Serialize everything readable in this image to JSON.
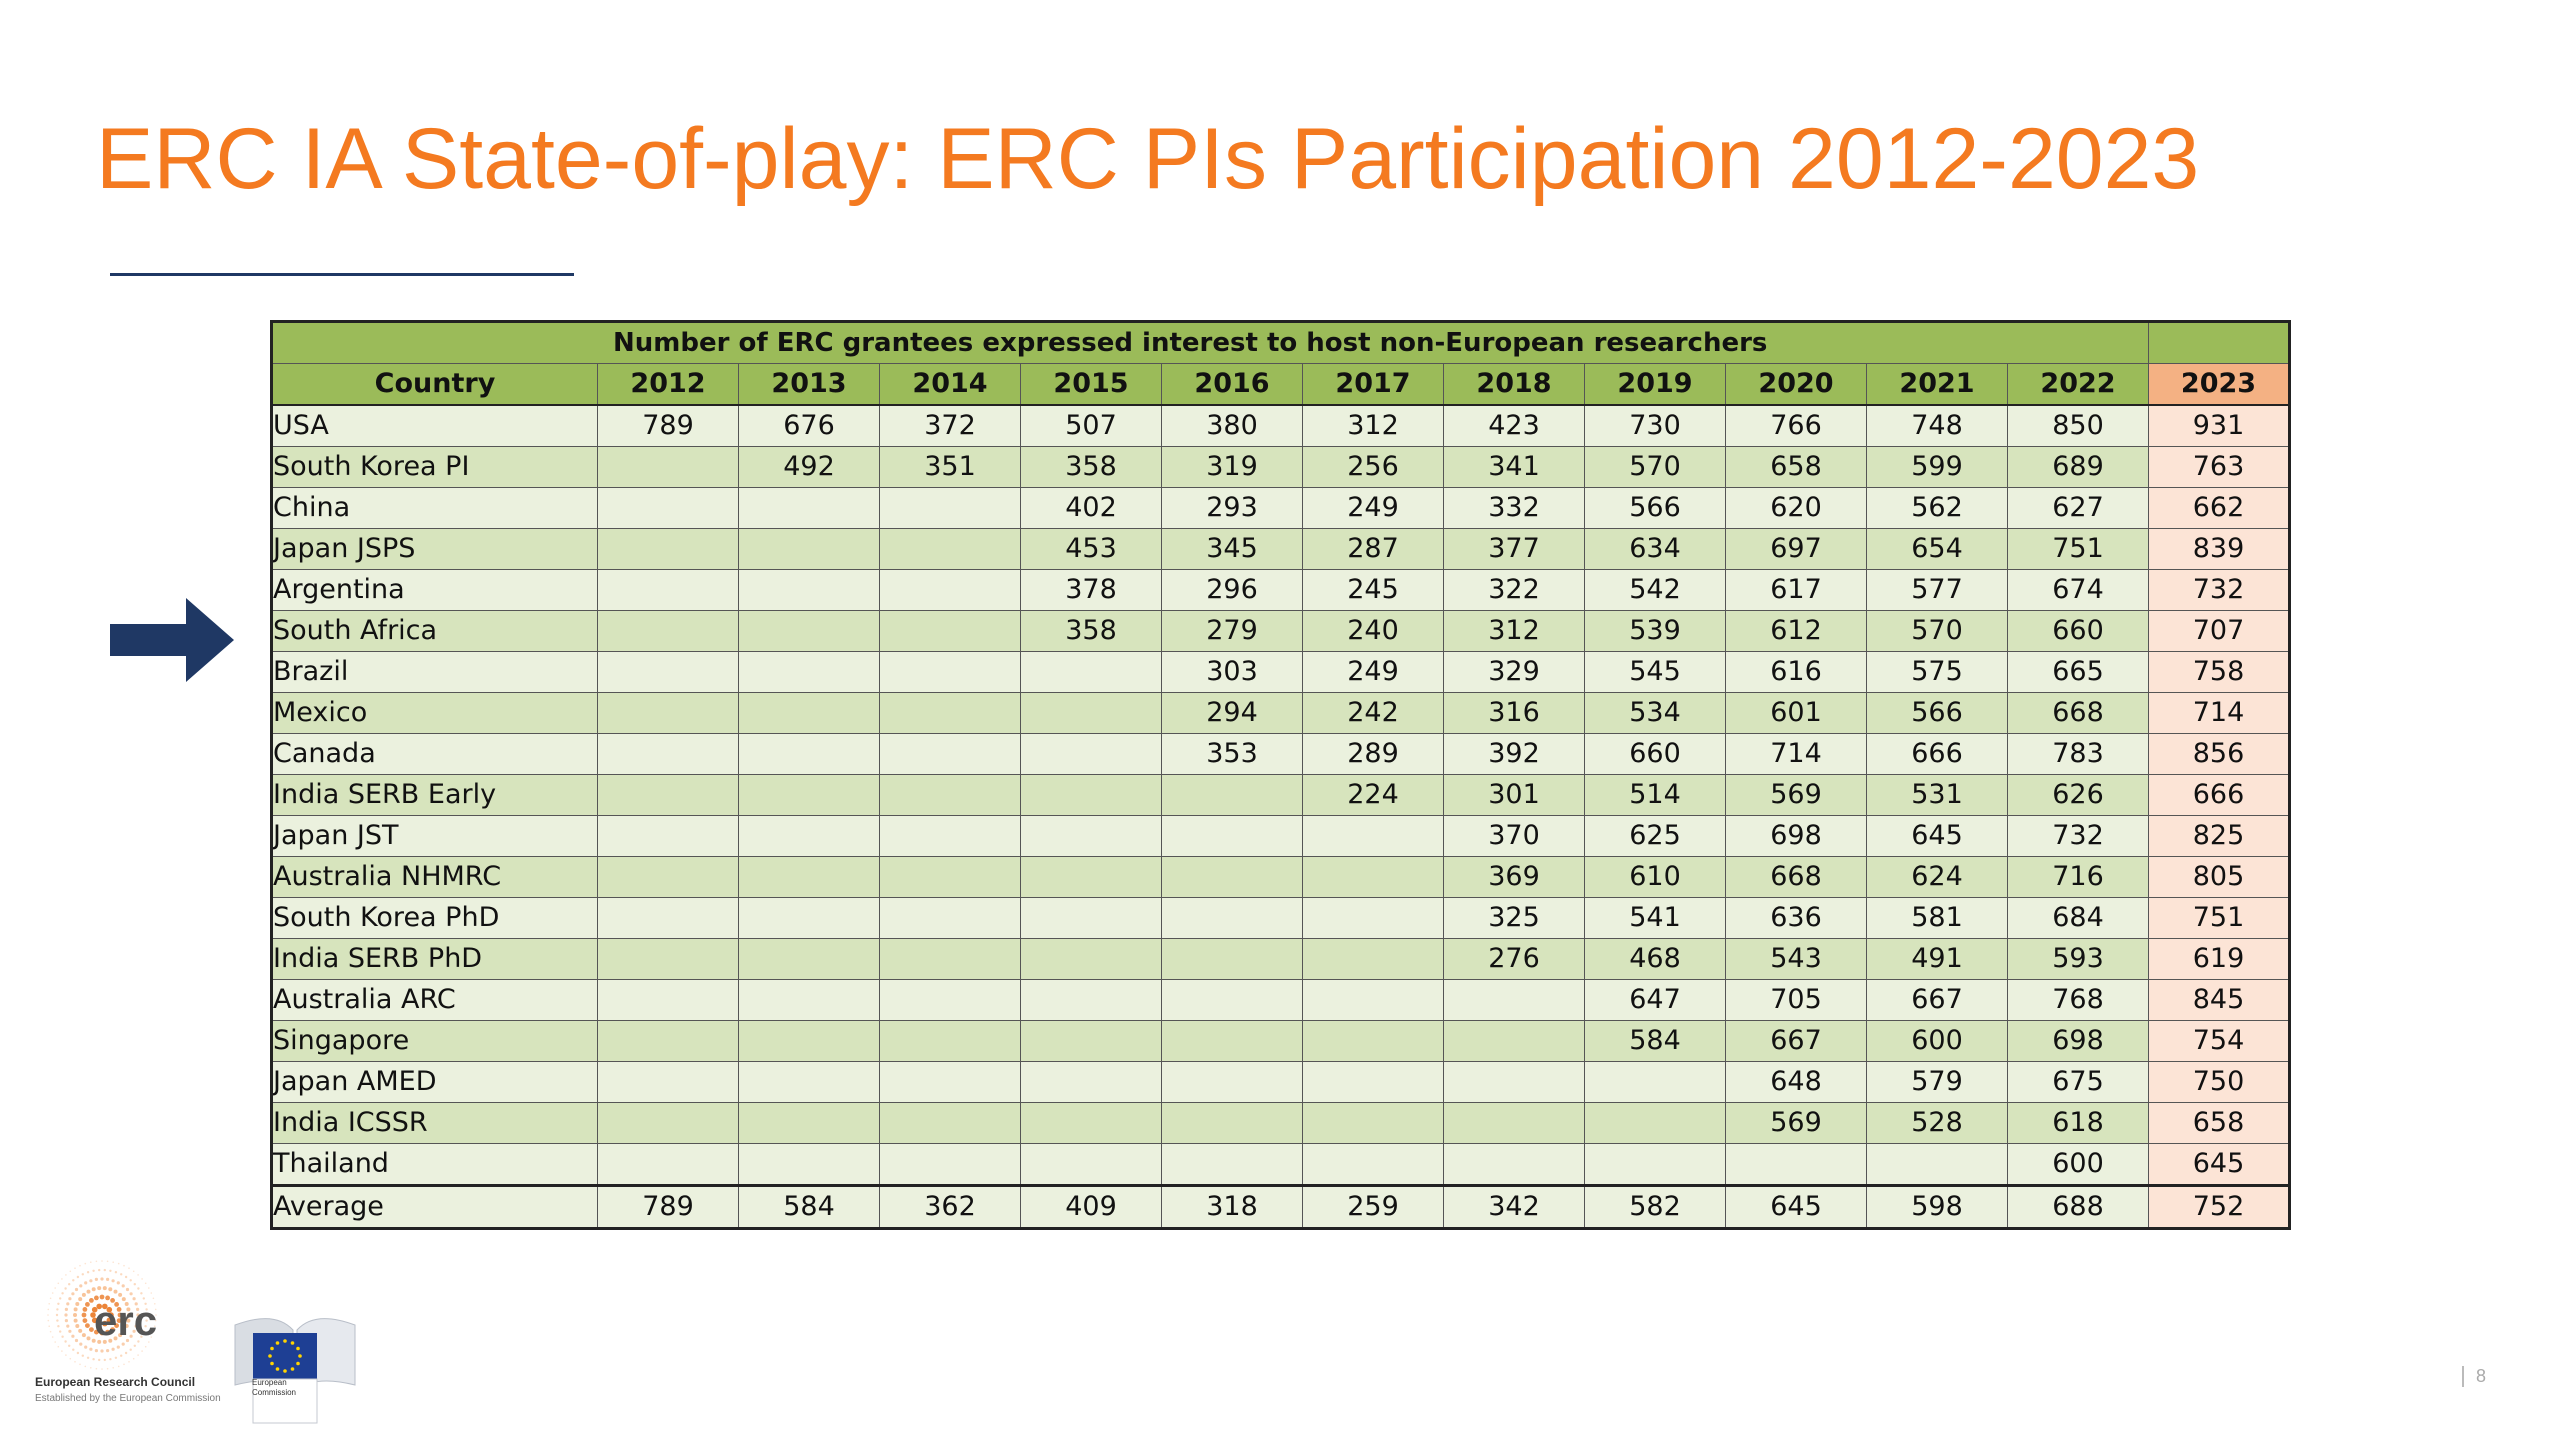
{
  "slide": {
    "title": "ERC IA State-of-play: ERC PIs Participation 2012-2023",
    "page_number": "8"
  },
  "table": {
    "header_title": "Number of ERC grantees expressed interest to host non-European researchers",
    "country_header": "Country",
    "years": [
      "2012",
      "2013",
      "2014",
      "2015",
      "2016",
      "2017",
      "2018",
      "2019",
      "2020",
      "2021",
      "2022",
      "2023"
    ],
    "rows": [
      {
        "country": "USA",
        "values": [
          "789",
          "676",
          "372",
          "507",
          "380",
          "312",
          "423",
          "730",
          "766",
          "748",
          "850",
          "931"
        ]
      },
      {
        "country": "South Korea PI",
        "values": [
          "",
          "492",
          "351",
          "358",
          "319",
          "256",
          "341",
          "570",
          "658",
          "599",
          "689",
          "763"
        ]
      },
      {
        "country": "China",
        "values": [
          "",
          "",
          "",
          "402",
          "293",
          "249",
          "332",
          "566",
          "620",
          "562",
          "627",
          "662"
        ]
      },
      {
        "country": "Japan JSPS",
        "values": [
          "",
          "",
          "",
          "453",
          "345",
          "287",
          "377",
          "634",
          "697",
          "654",
          "751",
          "839"
        ]
      },
      {
        "country": "Argentina",
        "values": [
          "",
          "",
          "",
          "378",
          "296",
          "245",
          "322",
          "542",
          "617",
          "577",
          "674",
          "732"
        ]
      },
      {
        "country": "South Africa",
        "values": [
          "",
          "",
          "",
          "358",
          "279",
          "240",
          "312",
          "539",
          "612",
          "570",
          "660",
          "707"
        ]
      },
      {
        "country": "Brazil",
        "values": [
          "",
          "",
          "",
          "",
          "303",
          "249",
          "329",
          "545",
          "616",
          "575",
          "665",
          "758"
        ]
      },
      {
        "country": "Mexico",
        "values": [
          "",
          "",
          "",
          "",
          "294",
          "242",
          "316",
          "534",
          "601",
          "566",
          "668",
          "714"
        ]
      },
      {
        "country": "Canada",
        "values": [
          "",
          "",
          "",
          "",
          "353",
          "289",
          "392",
          "660",
          "714",
          "666",
          "783",
          "856"
        ]
      },
      {
        "country": "India SERB Early",
        "values": [
          "",
          "",
          "",
          "",
          "",
          "224",
          "301",
          "514",
          "569",
          "531",
          "626",
          "666"
        ]
      },
      {
        "country": "Japan JST",
        "values": [
          "",
          "",
          "",
          "",
          "",
          "",
          "370",
          "625",
          "698",
          "645",
          "732",
          "825"
        ]
      },
      {
        "country": "Australia NHMRC",
        "values": [
          "",
          "",
          "",
          "",
          "",
          "",
          "369",
          "610",
          "668",
          "624",
          "716",
          "805"
        ]
      },
      {
        "country": "South Korea PhD",
        "values": [
          "",
          "",
          "",
          "",
          "",
          "",
          "325",
          "541",
          "636",
          "581",
          "684",
          "751"
        ]
      },
      {
        "country": "India SERB PhD",
        "values": [
          "",
          "",
          "",
          "",
          "",
          "",
          "276",
          "468",
          "543",
          "491",
          "593",
          "619"
        ]
      },
      {
        "country": "Australia ARC",
        "values": [
          "",
          "",
          "",
          "",
          "",
          "",
          "",
          "647",
          "705",
          "667",
          "768",
          "845"
        ]
      },
      {
        "country": "Singapore",
        "values": [
          "",
          "",
          "",
          "",
          "",
          "",
          "",
          "584",
          "667",
          "600",
          "698",
          "754"
        ]
      },
      {
        "country": "Japan AMED",
        "values": [
          "",
          "",
          "",
          "",
          "",
          "",
          "",
          "",
          "648",
          "579",
          "675",
          "750"
        ]
      },
      {
        "country": "India ICSSR",
        "values": [
          "",
          "",
          "",
          "",
          "",
          "",
          "",
          "",
          "569",
          "528",
          "618",
          "658"
        ]
      },
      {
        "country": "Thailand",
        "values": [
          "",
          "",
          "",
          "",
          "",
          "",
          "",
          "",
          "",
          "",
          "600",
          "645"
        ]
      }
    ],
    "average": {
      "label": "Average",
      "values": [
        "789",
        "584",
        "362",
        "409",
        "318",
        "259",
        "342",
        "582",
        "645",
        "598",
        "688",
        "752"
      ]
    }
  },
  "logos": {
    "erc_word": "erc",
    "erc_name": "European Research Council",
    "erc_sub": "Established by the European Commission",
    "ec_name": "European Commission"
  },
  "colors": {
    "title": "#F47A20",
    "header_green": "#9BBB59",
    "row_light": "#EBF1DE",
    "row_dark": "#D7E4BD",
    "year_2023_header": "#F4B183",
    "col_2023": "#FCE4D6",
    "arrow": "#1F3864"
  },
  "icons": {
    "arrow": "right-arrow-icon",
    "erc_logo": "erc-logo",
    "ec_logo": "european-commission-logo"
  }
}
